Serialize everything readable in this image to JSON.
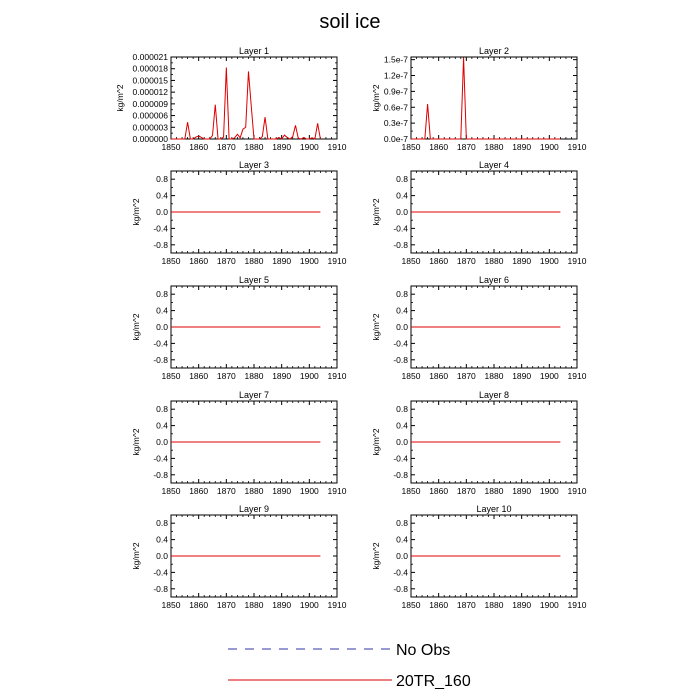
{
  "chart_data": {
    "type": "line",
    "title": "soil ice",
    "colors": {
      "obs": "#3333aa",
      "model": "#dd0000"
    },
    "legend": {
      "placement": "bottom-center",
      "entries": [
        {
          "label": "No Obs",
          "style": "dashed",
          "color": "#3333aa"
        },
        {
          "label": "20TR_160",
          "style": "solid",
          "color": "#dd0000"
        }
      ]
    },
    "panels": [
      {
        "title": "Layer 1",
        "ylabel": "kg/m^2",
        "xlim": [
          1850,
          1910
        ],
        "xticks": [
          1850,
          1860,
          1870,
          1880,
          1890,
          1900,
          1910
        ],
        "ylim": [
          0,
          2.1e-05
        ],
        "yticks": [
          0,
          3e-06,
          6e-06,
          9e-06,
          1.2e-05,
          1.5e-05,
          1.8e-05,
          2.1e-05
        ],
        "yticklabels": [
          "0.000000",
          "0.000003",
          "0.000006",
          "0.000009",
          "0.000012",
          "0.000015",
          "0.000018",
          "0.000021"
        ],
        "series": [
          {
            "name": "20TR_160",
            "x": [
              1850,
              1851,
              1852,
              1853,
              1854,
              1855,
              1856,
              1857,
              1858,
              1859,
              1860,
              1861,
              1862,
              1863,
              1864,
              1865,
              1866,
              1867,
              1868,
              1869,
              1870,
              1871,
              1872,
              1873,
              1874,
              1875,
              1876,
              1877,
              1878,
              1879,
              1880,
              1881,
              1882,
              1883,
              1884,
              1885,
              1886,
              1887,
              1888,
              1889,
              1890,
              1891,
              1892,
              1893,
              1894,
              1895,
              1896,
              1897,
              1898,
              1899,
              1900,
              1901,
              1902,
              1903,
              1904
            ],
            "y": [
              0,
              0,
              0,
              0,
              0,
              0,
              4.3e-06,
              0,
              0,
              5e-07,
              8e-07,
              4e-07,
              0,
              0,
              0,
              9e-07,
              8.8e-06,
              0,
              0,
              5e-07,
              1.83e-05,
              0,
              0,
              3e-07,
              1.2e-06,
              3e-07,
              2.5e-06,
              3e-06,
              1.73e-05,
              8.5e-06,
              0,
              0,
              0,
              6e-07,
              5.6e-06,
              0,
              0,
              0,
              0,
              4e-07,
              0,
              1e-06,
              4e-07,
              0,
              6e-07,
              3.5e-06,
              2e-07,
              0,
              4e-07,
              0,
              0,
              3e-07,
              0,
              4e-06,
              0
            ]
          }
        ]
      },
      {
        "title": "Layer 2",
        "ylabel": "kg/m^2",
        "xlim": [
          1850,
          1910
        ],
        "xticks": [
          1850,
          1860,
          1870,
          1880,
          1890,
          1900,
          1910
        ],
        "ylim": [
          0,
          1.55e-07
        ],
        "yticks": [
          0,
          3e-08,
          6e-08,
          9e-08,
          1.2e-07,
          1.5e-07
        ],
        "yticklabels": [
          "0.0e-7",
          "0.3e-7",
          "0.6e-7",
          "0.9e-7",
          "1.2e-7",
          "1.5e-7"
        ],
        "series": [
          {
            "name": "20TR_160",
            "x": [
              1850,
              1851,
              1852,
              1853,
              1854,
              1855,
              1856,
              1857,
              1858,
              1859,
              1860,
              1861,
              1862,
              1863,
              1864,
              1865,
              1866,
              1867,
              1868,
              1869,
              1870,
              1871,
              1872,
              1873,
              1874,
              1875,
              1876,
              1877,
              1878,
              1879,
              1880,
              1881,
              1882,
              1883,
              1884,
              1885,
              1886,
              1887,
              1888,
              1889,
              1890,
              1891,
              1892,
              1893,
              1894,
              1895,
              1896,
              1897,
              1898,
              1899,
              1900,
              1901,
              1902,
              1903,
              1904
            ],
            "y": [
              0,
              0,
              0,
              0,
              0,
              0,
              6.6e-08,
              0,
              0,
              0,
              0,
              0,
              0,
              0,
              0,
              0,
              0,
              0,
              0,
              1.54e-07,
              0,
              0,
              0,
              0,
              0,
              0,
              0,
              0,
              0,
              0,
              0,
              0,
              0,
              0,
              0,
              0,
              0,
              0,
              0,
              0,
              0,
              0,
              0,
              0,
              0,
              0,
              0,
              0,
              0,
              0,
              0,
              0,
              0,
              0,
              0
            ]
          }
        ]
      },
      {
        "title": "Layer 3",
        "ylabel": "kg/m^2",
        "xlim": [
          1850,
          1910
        ],
        "xticks": [
          1850,
          1860,
          1870,
          1880,
          1890,
          1900,
          1910
        ],
        "ylim": [
          -1,
          1
        ],
        "yticks": [
          -0.8,
          -0.4,
          0,
          0.4,
          0.8
        ],
        "yticklabels": [
          "-0.8",
          "-0.4",
          "0.0",
          "0.4",
          "0.8"
        ],
        "series": [
          {
            "name": "20TR_160",
            "x": [
              1850,
              1904
            ],
            "y": [
              0,
              0
            ]
          }
        ]
      },
      {
        "title": "Layer 4",
        "ylabel": "kg/m^2",
        "xlim": [
          1850,
          1910
        ],
        "xticks": [
          1850,
          1860,
          1870,
          1880,
          1890,
          1900,
          1910
        ],
        "ylim": [
          -1,
          1
        ],
        "yticks": [
          -0.8,
          -0.4,
          0,
          0.4,
          0.8
        ],
        "yticklabels": [
          "-0.8",
          "-0.4",
          "0.0",
          "0.4",
          "0.8"
        ],
        "series": [
          {
            "name": "20TR_160",
            "x": [
              1850,
              1904
            ],
            "y": [
              0,
              0
            ]
          }
        ]
      },
      {
        "title": "Layer 5",
        "ylabel": "kg/m^2",
        "xlim": [
          1850,
          1910
        ],
        "xticks": [
          1850,
          1860,
          1870,
          1880,
          1890,
          1900,
          1910
        ],
        "ylim": [
          -1,
          1
        ],
        "yticks": [
          -0.8,
          -0.4,
          0,
          0.4,
          0.8
        ],
        "yticklabels": [
          "-0.8",
          "-0.4",
          "0.0",
          "0.4",
          "0.8"
        ],
        "series": [
          {
            "name": "20TR_160",
            "x": [
              1850,
              1904
            ],
            "y": [
              0,
              0
            ]
          }
        ]
      },
      {
        "title": "Layer 6",
        "ylabel": "kg/m^2",
        "xlim": [
          1850,
          1910
        ],
        "xticks": [
          1850,
          1860,
          1870,
          1880,
          1890,
          1900,
          1910
        ],
        "ylim": [
          -1,
          1
        ],
        "yticks": [
          -0.8,
          -0.4,
          0,
          0.4,
          0.8
        ],
        "yticklabels": [
          "-0.8",
          "-0.4",
          "0.0",
          "0.4",
          "0.8"
        ],
        "series": [
          {
            "name": "20TR_160",
            "x": [
              1850,
              1904
            ],
            "y": [
              0,
              0
            ]
          }
        ]
      },
      {
        "title": "Layer 7",
        "ylabel": "kg/m^2",
        "xlim": [
          1850,
          1910
        ],
        "xticks": [
          1850,
          1860,
          1870,
          1880,
          1890,
          1900,
          1910
        ],
        "ylim": [
          -1,
          1
        ],
        "yticks": [
          -0.8,
          -0.4,
          0,
          0.4,
          0.8
        ],
        "yticklabels": [
          "-0.8",
          "-0.4",
          "0.0",
          "0.4",
          "0.8"
        ],
        "series": [
          {
            "name": "20TR_160",
            "x": [
              1850,
              1904
            ],
            "y": [
              0,
              0
            ]
          }
        ]
      },
      {
        "title": "Layer 8",
        "ylabel": "kg/m^2",
        "xlim": [
          1850,
          1910
        ],
        "xticks": [
          1850,
          1860,
          1870,
          1880,
          1890,
          1900,
          1910
        ],
        "ylim": [
          -1,
          1
        ],
        "yticks": [
          -0.8,
          -0.4,
          0,
          0.4,
          0.8
        ],
        "yticklabels": [
          "-0.8",
          "-0.4",
          "0.0",
          "0.4",
          "0.8"
        ],
        "series": [
          {
            "name": "20TR_160",
            "x": [
              1850,
              1904
            ],
            "y": [
              0,
              0
            ]
          }
        ]
      },
      {
        "title": "Layer 9",
        "ylabel": "kg/m^2",
        "xlim": [
          1850,
          1910
        ],
        "xticks": [
          1850,
          1860,
          1870,
          1880,
          1890,
          1900,
          1910
        ],
        "ylim": [
          -1,
          1
        ],
        "yticks": [
          -0.8,
          -0.4,
          0,
          0.4,
          0.8
        ],
        "yticklabels": [
          "-0.8",
          "-0.4",
          "0.0",
          "0.4",
          "0.8"
        ],
        "series": [
          {
            "name": "20TR_160",
            "x": [
              1850,
              1904
            ],
            "y": [
              0,
              0
            ]
          }
        ]
      },
      {
        "title": "Layer 10",
        "ylabel": "kg/m^2",
        "xlim": [
          1850,
          1910
        ],
        "xticks": [
          1850,
          1860,
          1870,
          1880,
          1890,
          1900,
          1910
        ],
        "ylim": [
          -1,
          1
        ],
        "yticks": [
          -0.8,
          -0.4,
          0,
          0.4,
          0.8
        ],
        "yticklabels": [
          "-0.8",
          "-0.4",
          "0.0",
          "0.4",
          "0.8"
        ],
        "series": [
          {
            "name": "20TR_160",
            "x": [
              1850,
              1904
            ],
            "y": [
              0,
              0
            ]
          }
        ]
      }
    ]
  }
}
